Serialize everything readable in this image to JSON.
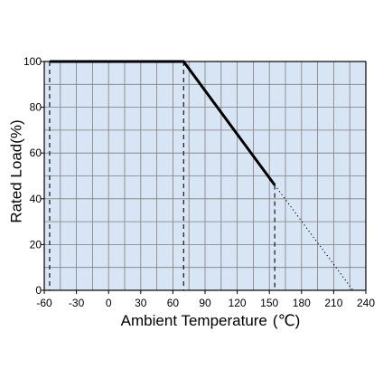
{
  "chart_data": {
    "type": "line",
    "xlabel": "Ambient Temperature",
    "xlabel_unit": "℃",
    "ylabel": "Rated Load(%)",
    "xlim": [
      -60,
      240
    ],
    "ylim": [
      0,
      100
    ],
    "x_ticks": [
      -60,
      -30,
      0,
      30,
      60,
      90,
      120,
      150,
      180,
      210,
      240
    ],
    "y_ticks": [
      0,
      20,
      40,
      60,
      80,
      100
    ],
    "x_tick_labels": [
      "-60",
      "-30",
      "0",
      "30",
      "60",
      "90",
      "120",
      "150",
      "180",
      "210",
      "240"
    ],
    "y_tick_labels": [
      "0",
      "20",
      "40",
      "60",
      "80",
      "100"
    ],
    "x_grid_step": 15,
    "y_grid_step": 10,
    "grid": true,
    "series": [
      {
        "style": "solid",
        "x": [
          -55,
          70,
          155
        ],
        "y": [
          100,
          100,
          46
        ]
      },
      {
        "style": "dotted",
        "x": [
          155,
          228
        ],
        "y": [
          46,
          0
        ]
      }
    ],
    "vertical_dashed_lines": [
      -55,
      70,
      155
    ],
    "colors": {
      "plot_background": "#d7e5f4",
      "grid": "#7f7f7f",
      "line": "#000000",
      "axis": "#000000"
    }
  }
}
